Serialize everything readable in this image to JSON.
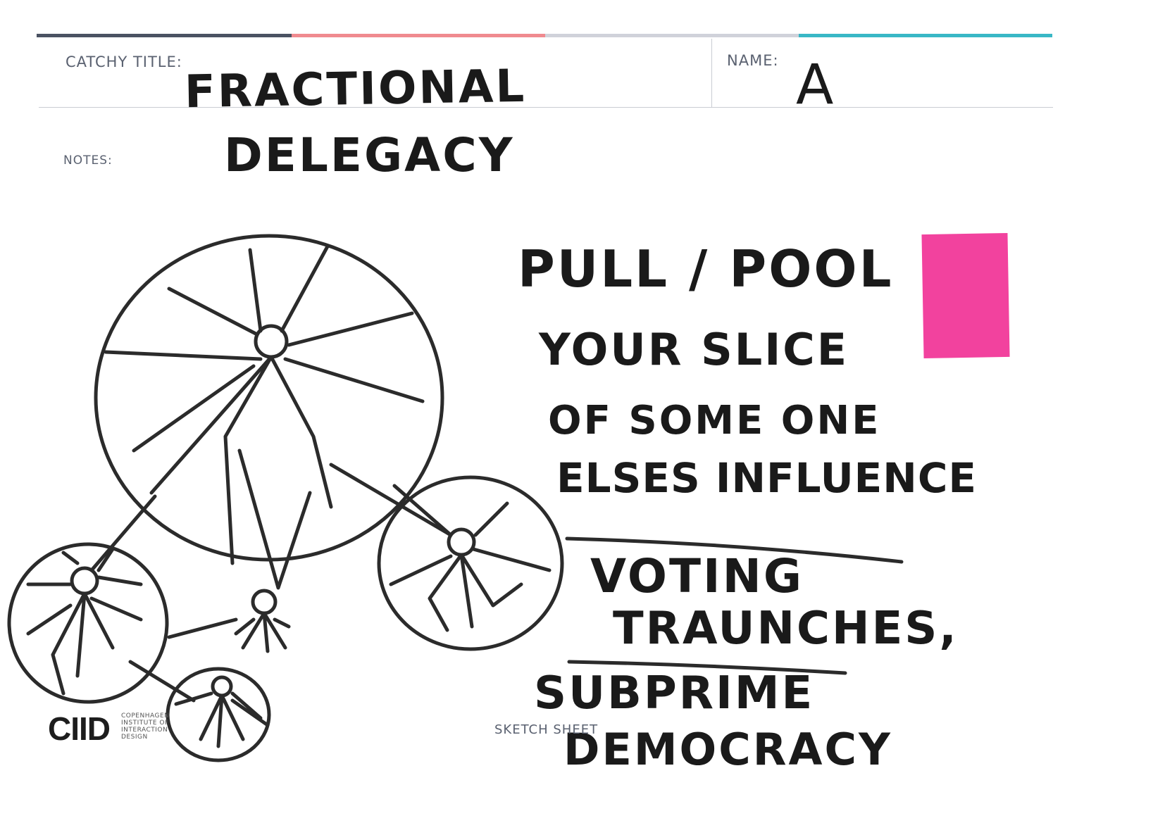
{
  "header": {
    "title_label": "CATCHY TITLE:",
    "name_label": "NAME:",
    "notes_label": "NOTES:",
    "bar_colors": [
      "#4a5262",
      "#f08a8f",
      "#d0d2da",
      "#39b7c6"
    ]
  },
  "handwriting": {
    "title_line1": "FRACTIONAL",
    "title_line2": "DELEGACY",
    "name": "A",
    "line1": "PULL / POOL",
    "line2": "YOUR SLICE",
    "line3": "OF SOME ONE",
    "line4": "ELSES INFLUENCE",
    "line5": "VOTING",
    "line6": "TRAUNCHES,",
    "line7": "SUBPRIME",
    "line8": "DEMOCRACY"
  },
  "footer": {
    "logo": "CIID",
    "logo_sub1": "COPENHAGEN",
    "logo_sub2": "INSTITUTE OF",
    "logo_sub3": "INTERACTION",
    "logo_sub4": "DESIGN",
    "sheet_label": "SKETCH SHEET"
  },
  "sticky_note_color": "#f2429e"
}
